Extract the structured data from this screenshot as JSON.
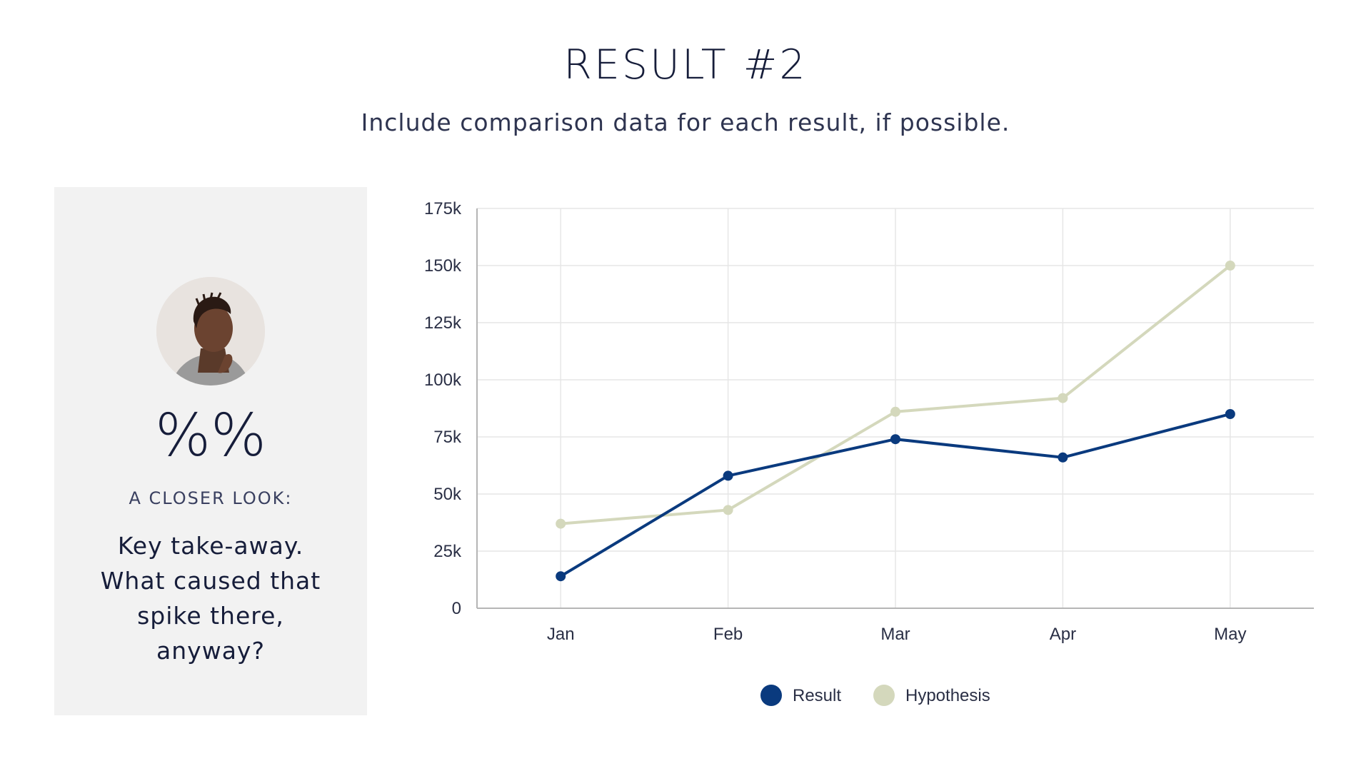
{
  "header": {
    "title": "RESULT #2",
    "subtitle": "Include comparison data for each result, if possible."
  },
  "card": {
    "stat": "%%",
    "label": "A CLOSER LOOK:",
    "takeaway": "Key take-away. What caused that spike there, anyway?"
  },
  "colors": {
    "result": "#0a3a7e",
    "hypothesis": "#d4d8bc",
    "grid": "#e6e6e6",
    "axis": "#b5b5b5"
  },
  "chart_data": {
    "type": "line",
    "categories": [
      "Jan",
      "Feb",
      "Mar",
      "Apr",
      "May"
    ],
    "series": [
      {
        "name": "Result",
        "values": [
          14000,
          58000,
          74000,
          66000,
          85000
        ]
      },
      {
        "name": "Hypothesis",
        "values": [
          37000,
          43000,
          86000,
          92000,
          150000
        ]
      }
    ],
    "ylim": [
      0,
      175000
    ],
    "yticks": [
      0,
      25000,
      50000,
      75000,
      100000,
      125000,
      150000,
      175000
    ],
    "ytick_labels": [
      "0",
      "25k",
      "50k",
      "75k",
      "100k",
      "125k",
      "150k",
      "175k"
    ],
    "grid": true,
    "legend": "bottom"
  }
}
